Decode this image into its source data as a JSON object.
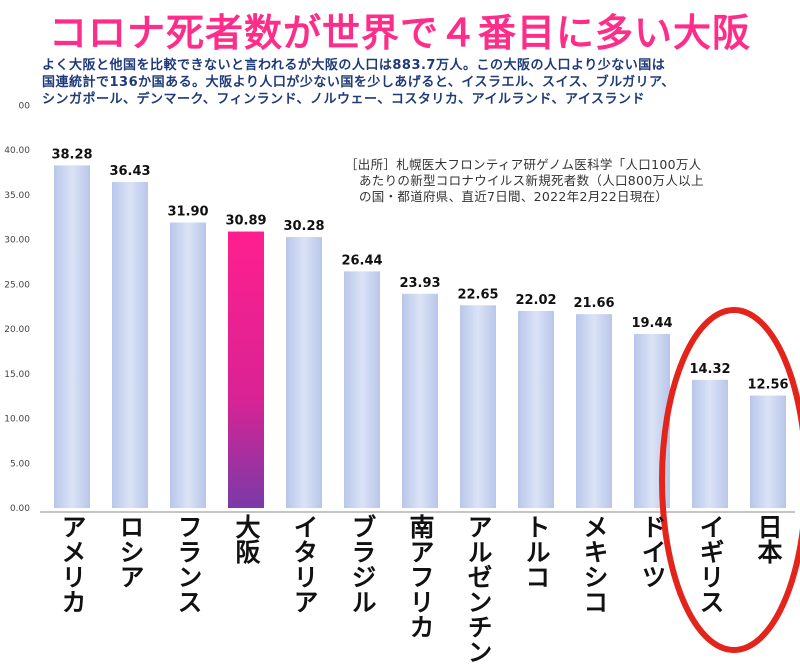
{
  "title": "コロナ死者数が世界で４番目に多い大阪",
  "subtitle_lines": [
    "よく大阪と他国を比較できないと言われるが大阪の人口は883.7万人。この大阪の人口より少ない国は",
    "国連統計で136か国ある。大阪より人口が少ない国を少しあげると、イスラエル、スイス、ブルガリア、",
    "シンガポール、デンマーク、フィンランド、ノルウェー、コスタリカ、アイルランド、アイスランド"
  ],
  "source_lines": [
    "［出所］札幌医大フロンティア研ゲノム医科学「人口100万人",
    "あたりの新型コロナウイルス新規死者数（人口800万人以上",
    "の国・都道府県、直近7日間、2022年2月22日現在）"
  ],
  "chart_data": {
    "type": "bar",
    "categories": [
      "アメリカ",
      "ロシア",
      "フランス",
      "大阪",
      "イタリア",
      "ブラジル",
      "南アフリカ",
      "アルゼンチン",
      "トルコ",
      "メキシコ",
      "ドイツ",
      "イギリス",
      "日本"
    ],
    "values": [
      38.28,
      36.43,
      31.9,
      30.89,
      30.28,
      26.44,
      23.93,
      22.65,
      22.02,
      21.66,
      19.44,
      14.32,
      12.56
    ],
    "value_labels": [
      "38.28",
      "36.43",
      "31.90",
      "30.89",
      "30.28",
      "26.44",
      "23.93",
      "22.65",
      "22.02",
      "21.66",
      "19.44",
      "14.32",
      "12.56"
    ],
    "yticks": [
      "0.00",
      "5.00",
      "10.00",
      "15.00",
      "20.00",
      "25.00",
      "30.00",
      "35.00",
      "40.00"
    ],
    "top_tick_label": "00",
    "ylim": [
      0,
      45
    ],
    "highlight_category": "大阪",
    "highlight_color": "#e6208f",
    "bar_color": "#c4d0ee",
    "annotation_circle_color": "#e3241b",
    "grid": false
  }
}
